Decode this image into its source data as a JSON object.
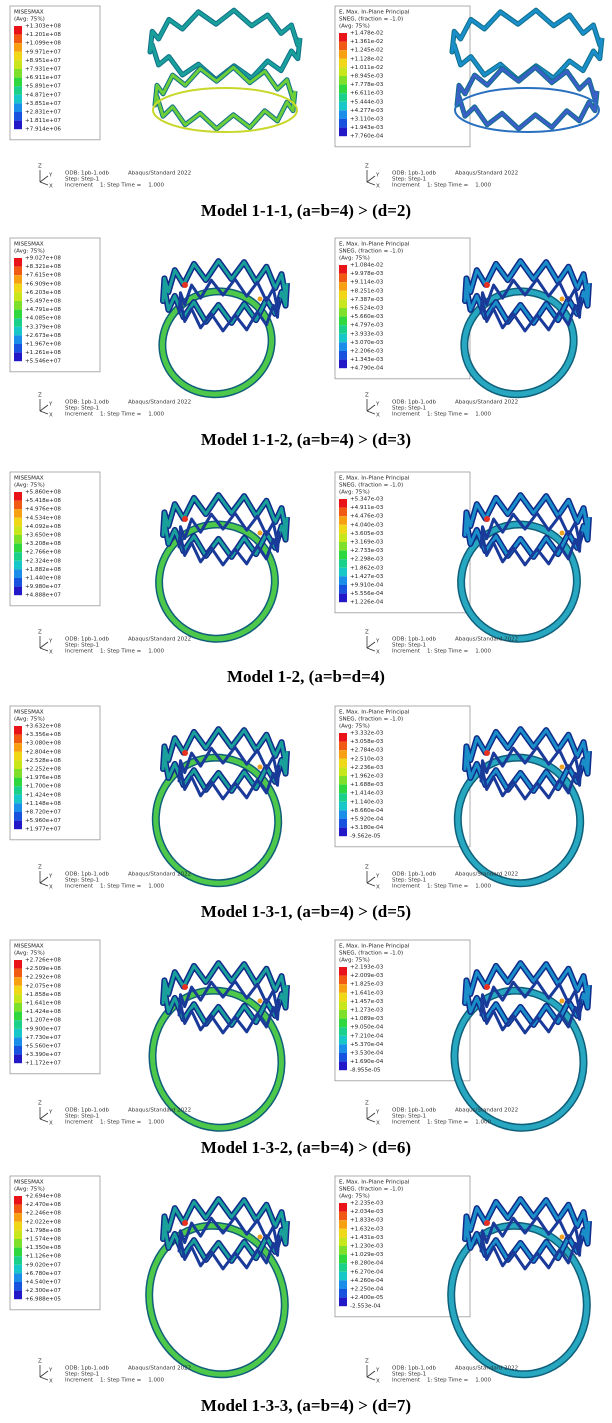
{
  "rows": [
    {
      "caption": "Model 1-1-1, (a=b=4) > (d=2)",
      "left": {
        "title": [
          "MISESMAX",
          "(Avg: 75%)"
        ],
        "values": [
          "+1.303e+08",
          "+1.201e+08",
          "+1.099e+08",
          "+9.971e+07",
          "+8.951e+07",
          "+7.931e+07",
          "+6.911e+07",
          "+5.891e+07",
          "+4.871e+07",
          "+3.851e+07",
          "+2.831e+07",
          "+1.811e+07",
          "+7.914e+06"
        ]
      },
      "right": {
        "title": [
          "E, Max. In-Plane Principal",
          "SNEG, (fraction = -1.0)",
          "(Avg: 75%)"
        ],
        "values": [
          "+1.478e-02",
          "+1.361e-02",
          "+1.245e-02",
          "+1.128e-02",
          "+1.011e-02",
          "+8.945e-03",
          "+7.778e-03",
          "+6.611e-03",
          "+5.444e-03",
          "+4.277e-03",
          "+3.110e-03",
          "+1.943e-03",
          "+7.760e-04"
        ]
      }
    },
    {
      "caption": "Model 1-1-2, (a=b=4) > (d=3)",
      "left": {
        "title": [
          "MISESMAX",
          "(Avg: 75%)"
        ],
        "values": [
          "+9.027e+08",
          "+8.321e+08",
          "+7.615e+08",
          "+6.909e+08",
          "+6.203e+08",
          "+5.497e+08",
          "+4.791e+08",
          "+4.085e+08",
          "+3.379e+08",
          "+2.673e+08",
          "+1.967e+08",
          "+1.261e+08",
          "+5.546e+07"
        ]
      },
      "right": {
        "title": [
          "E, Max. In-Plane Principal",
          "SNEG, (fraction = -1.0)",
          "(Avg: 75%)"
        ],
        "values": [
          "+1.084e-02",
          "+9.978e-03",
          "+9.114e-03",
          "+8.251e-03",
          "+7.387e-03",
          "+6.524e-03",
          "+5.660e-03",
          "+4.797e-03",
          "+3.933e-03",
          "+3.070e-03",
          "+2.206e-03",
          "+1.343e-03",
          "+4.790e-04"
        ]
      }
    },
    {
      "caption": "Model 1-2, (a=b=d=4)",
      "left": {
        "title": [
          "MISESMAX",
          "(Avg: 75%)"
        ],
        "values": [
          "+5.860e+08",
          "+5.418e+08",
          "+4.976e+08",
          "+4.534e+08",
          "+4.092e+08",
          "+3.650e+08",
          "+3.208e+08",
          "+2.766e+08",
          "+2.324e+08",
          "+1.882e+08",
          "+1.440e+08",
          "+9.980e+07",
          "+4.888e+07"
        ]
      },
      "right": {
        "title": [
          "E, Max. In-Plane Principal",
          "SNEG, (fraction = -1.0)",
          "(Avg: 75%)"
        ],
        "values": [
          "+5.347e-03",
          "+4.911e-03",
          "+4.476e-03",
          "+4.040e-03",
          "+3.605e-03",
          "+3.169e-03",
          "+2.733e-03",
          "+2.298e-03",
          "+1.862e-03",
          "+1.427e-03",
          "+9.910e-04",
          "+5.556e-04",
          "+1.226e-04"
        ]
      }
    },
    {
      "caption": "Model 1-3-1, (a=b=4) > (d=5)",
      "left": {
        "title": [
          "MISESMAX",
          "(Avg: 75%)"
        ],
        "values": [
          "+3.632e+08",
          "+3.356e+08",
          "+3.080e+08",
          "+2.804e+08",
          "+2.528e+08",
          "+2.252e+08",
          "+1.976e+08",
          "+1.700e+08",
          "+1.424e+08",
          "+1.148e+08",
          "+8.720e+07",
          "+5.960e+07",
          "+1.977e+07"
        ]
      },
      "right": {
        "title": [
          "E, Max. In-Plane Principal",
          "SNEG, (fraction = -1.0)",
          "(Avg: 75%)"
        ],
        "values": [
          "+3.332e-03",
          "+3.058e-03",
          "+2.784e-03",
          "+2.510e-03",
          "+2.236e-03",
          "+1.962e-03",
          "+1.688e-03",
          "+1.414e-03",
          "+1.140e-03",
          "+8.660e-04",
          "+5.920e-04",
          "+3.180e-04",
          "-9.562e-05"
        ]
      }
    },
    {
      "caption": "Model 1-3-2, (a=b=4) > (d=6)",
      "left": {
        "title": [
          "MISESMAX",
          "(Avg: 75%)"
        ],
        "values": [
          "+2.726e+08",
          "+2.509e+08",
          "+2.292e+08",
          "+2.075e+08",
          "+1.858e+08",
          "+1.641e+08",
          "+1.424e+08",
          "+1.207e+08",
          "+9.900e+07",
          "+7.730e+07",
          "+5.560e+07",
          "+3.390e+07",
          "+1.172e+07"
        ]
      },
      "right": {
        "title": [
          "E, Max. In-Plane Principal",
          "SNEG, (fraction = -1.0)",
          "(Avg: 75%)"
        ],
        "values": [
          "+2.193e-03",
          "+2.009e-03",
          "+1.825e-03",
          "+1.641e-03",
          "+1.457e-03",
          "+1.273e-03",
          "+1.089e-03",
          "+9.050e-04",
          "+7.210e-04",
          "+5.370e-04",
          "+3.530e-04",
          "+1.690e-04",
          "-8.955e-05"
        ]
      }
    },
    {
      "caption": "Model 1-3-3, (a=b=4) > (d=7)",
      "left": {
        "title": [
          "MISESMAX",
          "(Avg: 75%)"
        ],
        "values": [
          "+2.694e+08",
          "+2.470e+08",
          "+2.246e+08",
          "+2.022e+08",
          "+1.798e+08",
          "+1.574e+08",
          "+1.350e+08",
          "+1.126e+08",
          "+9.020e+07",
          "+6.780e+07",
          "+4.540e+07",
          "+2.300e+07",
          "+6.988e+05"
        ]
      },
      "right": {
        "title": [
          "E, Max. In-Plane Principal",
          "SNEG, (fraction = -1.0)",
          "(Avg: 75%)"
        ],
        "values": [
          "+2.235e-03",
          "+2.034e-03",
          "+1.833e-03",
          "+1.632e-03",
          "+1.431e-03",
          "+1.230e-03",
          "+1.029e-03",
          "+8.280e-04",
          "+6.270e-04",
          "+4.260e-04",
          "+2.250e-04",
          "+2.400e-05",
          "-2.553e-04"
        ]
      }
    }
  ],
  "footer": {
    "triad": [
      "Z",
      "Y",
      "X"
    ],
    "odb": "ODB: 1pb-1.odb",
    "solver": "Abaqus/Standard 2022",
    "step": "Step: Step-1",
    "increment": "Increment    1: Step Time =    1.000"
  }
}
